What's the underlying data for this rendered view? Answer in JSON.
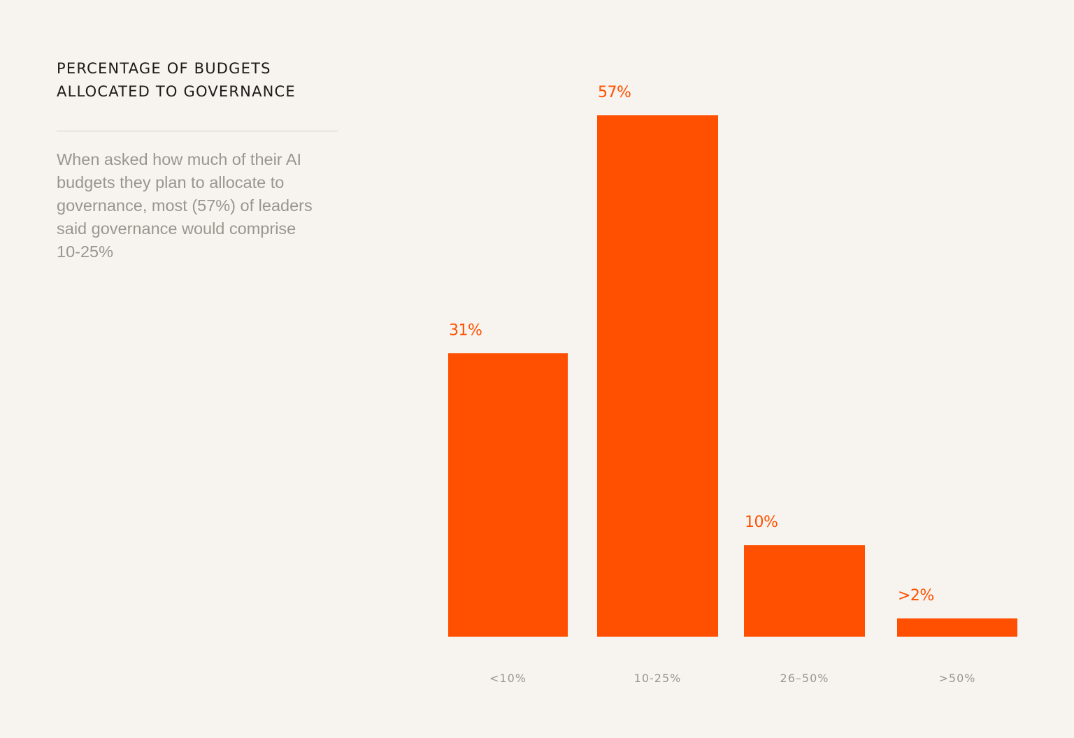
{
  "header": {
    "title_lines": [
      "PERCENTAGE OF BUDGETS",
      "ALLOCATED TO GOVERNANCE"
    ]
  },
  "description": {
    "lines": [
      "When asked how much of their AI",
      "budgets they plan to allocate to",
      "governance, most (57%) of leaders",
      "said governance would comprise",
      "10-25%"
    ]
  },
  "colors": {
    "background": "#f7f4ef",
    "bar": "#fe5000",
    "value_label": "#fe5000",
    "title": "#1c1a17",
    "body_text": "#9a958f",
    "divider": "#d2cdc6"
  },
  "chart_data": {
    "type": "bar",
    "categories": [
      "<10%",
      "10-25%",
      "26–50%",
      ">50%"
    ],
    "values": [
      31,
      57,
      10,
      2
    ],
    "data_labels": [
      "31%",
      "57%",
      "10%",
      ">2%"
    ],
    "ylim": [
      0,
      57
    ],
    "grid": false,
    "legend": "none"
  }
}
